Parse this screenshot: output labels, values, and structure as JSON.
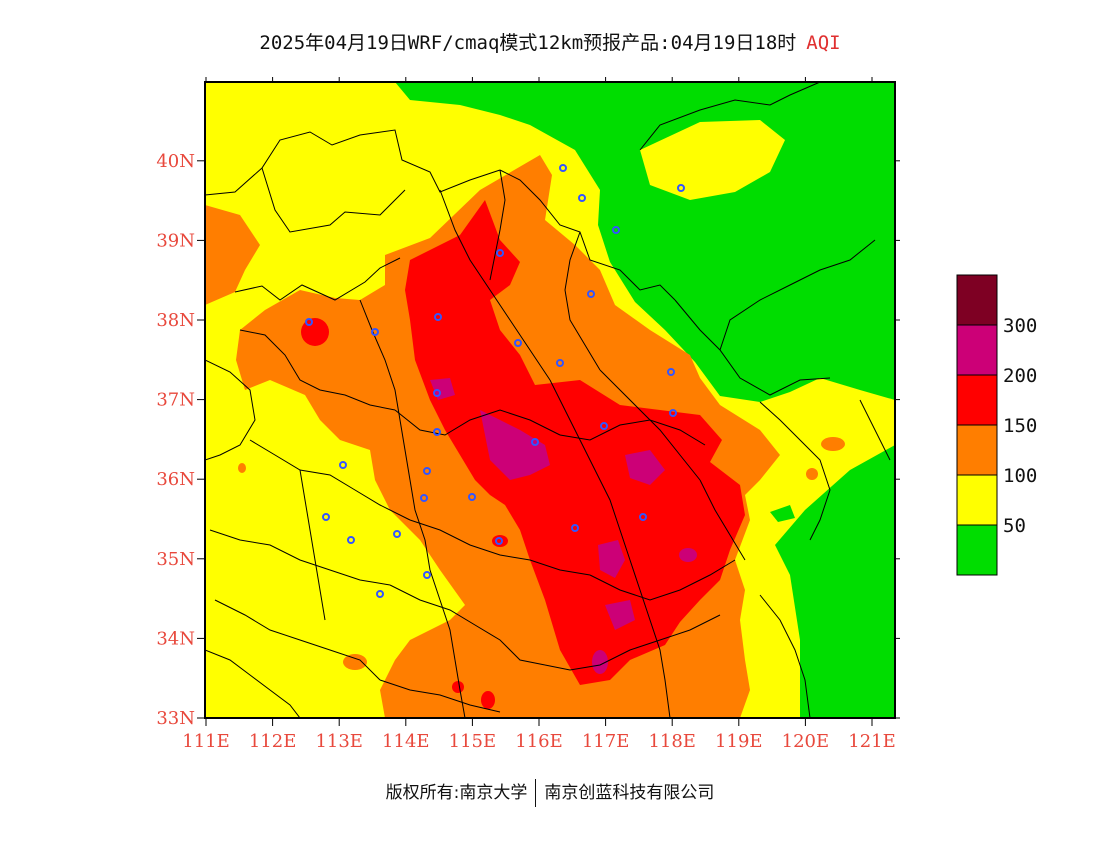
{
  "title": {
    "main": "2025年04月19日WRF/cmaq模式12km预报产品:04月19日18时",
    "variable": "AQI"
  },
  "axes": {
    "lon_ticks": [
      "111E",
      "112E",
      "113E",
      "114E",
      "115E",
      "116E",
      "117E",
      "118E",
      "119E",
      "120E",
      "121E"
    ],
    "lat_ticks": [
      "33N",
      "34N",
      "35N",
      "36N",
      "37N",
      "38N",
      "39N",
      "40N"
    ]
  },
  "legend": {
    "labels": [
      "50",
      "100",
      "150",
      "200",
      "300"
    ],
    "colors": [
      "#00dd00",
      "#ffff00",
      "#ff7e00",
      "#ff0000",
      "#cc0077",
      "#7e0023"
    ]
  },
  "footer": {
    "left": "版权所有:南京大学",
    "right": "南京创蓝科技有限公司"
  },
  "colors": {
    "good": "#00dd00",
    "moderate": "#ffff00",
    "usg": "#ff7e00",
    "unhealthy": "#ff0000",
    "very_unhealthy": "#cc0077",
    "hazardous": "#7e0023",
    "tick_text": "#e8483c",
    "station_marker": "#3355ff"
  }
}
